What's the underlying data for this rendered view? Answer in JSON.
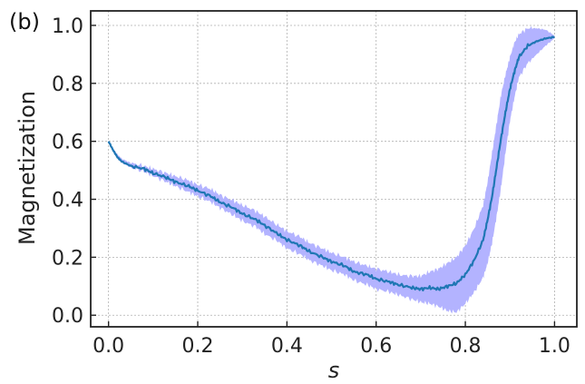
{
  "chart_data": {
    "type": "line",
    "panel_label": "(b)",
    "xlabel": "s",
    "ylabel": "Magnetization",
    "xlim": [
      -0.04,
      1.05
    ],
    "ylim": [
      -0.04,
      1.05
    ],
    "xticks": [
      0.0,
      0.2,
      0.4,
      0.6,
      0.8,
      1.0
    ],
    "xtick_labels": [
      "0.0",
      "0.2",
      "0.4",
      "0.6",
      "0.8",
      "1.0"
    ],
    "yticks": [
      0.0,
      0.2,
      0.4,
      0.6,
      0.8,
      1.0
    ],
    "ytick_labels": [
      "0.0",
      "0.2",
      "0.4",
      "0.6",
      "0.8",
      "1.0"
    ],
    "grid": true,
    "colors": {
      "line": "#1f77b4",
      "band": "#b3b3ff",
      "grid": "#b0b0b0"
    },
    "series": [
      {
        "x": [
          0.0,
          0.01,
          0.02,
          0.03,
          0.05,
          0.08,
          0.1,
          0.13,
          0.15,
          0.18,
          0.2,
          0.23,
          0.25,
          0.28,
          0.3,
          0.33,
          0.35,
          0.38,
          0.4,
          0.43,
          0.45,
          0.48,
          0.5,
          0.53,
          0.55,
          0.58,
          0.6,
          0.63,
          0.65,
          0.68,
          0.7,
          0.72,
          0.74,
          0.76,
          0.78,
          0.8,
          0.82,
          0.84,
          0.85,
          0.86,
          0.87,
          0.88,
          0.89,
          0.9,
          0.91,
          0.92,
          0.94,
          0.96,
          0.98,
          1.0
        ],
        "y": [
          0.6,
          0.57,
          0.545,
          0.53,
          0.515,
          0.505,
          0.49,
          0.475,
          0.46,
          0.445,
          0.43,
          0.41,
          0.39,
          0.37,
          0.35,
          0.33,
          0.31,
          0.28,
          0.26,
          0.24,
          0.22,
          0.2,
          0.185,
          0.17,
          0.15,
          0.14,
          0.125,
          0.115,
          0.105,
          0.095,
          0.09,
          0.095,
          0.09,
          0.1,
          0.11,
          0.14,
          0.19,
          0.26,
          0.33,
          0.41,
          0.51,
          0.61,
          0.7,
          0.78,
          0.84,
          0.89,
          0.93,
          0.945,
          0.955,
          0.96
        ],
        "lower": [
          0.6,
          0.57,
          0.54,
          0.525,
          0.51,
          0.495,
          0.48,
          0.46,
          0.445,
          0.425,
          0.41,
          0.39,
          0.37,
          0.345,
          0.325,
          0.305,
          0.28,
          0.255,
          0.23,
          0.21,
          0.19,
          0.17,
          0.155,
          0.14,
          0.12,
          0.105,
          0.09,
          0.08,
          0.07,
          0.055,
          0.045,
          0.04,
          0.03,
          0.015,
          0.01,
          0.04,
          0.08,
          0.13,
          0.18,
          0.25,
          0.34,
          0.44,
          0.56,
          0.67,
          0.75,
          0.82,
          0.87,
          0.9,
          0.93,
          0.955
        ],
        "upper": [
          0.6,
          0.575,
          0.555,
          0.54,
          0.525,
          0.515,
          0.505,
          0.49,
          0.48,
          0.465,
          0.45,
          0.435,
          0.415,
          0.395,
          0.38,
          0.36,
          0.34,
          0.31,
          0.29,
          0.27,
          0.25,
          0.23,
          0.215,
          0.2,
          0.185,
          0.17,
          0.16,
          0.15,
          0.14,
          0.135,
          0.135,
          0.15,
          0.16,
          0.18,
          0.2,
          0.24,
          0.3,
          0.38,
          0.46,
          0.56,
          0.66,
          0.76,
          0.83,
          0.89,
          0.94,
          0.97,
          0.99,
          0.99,
          0.985,
          0.965
        ]
      }
    ]
  }
}
